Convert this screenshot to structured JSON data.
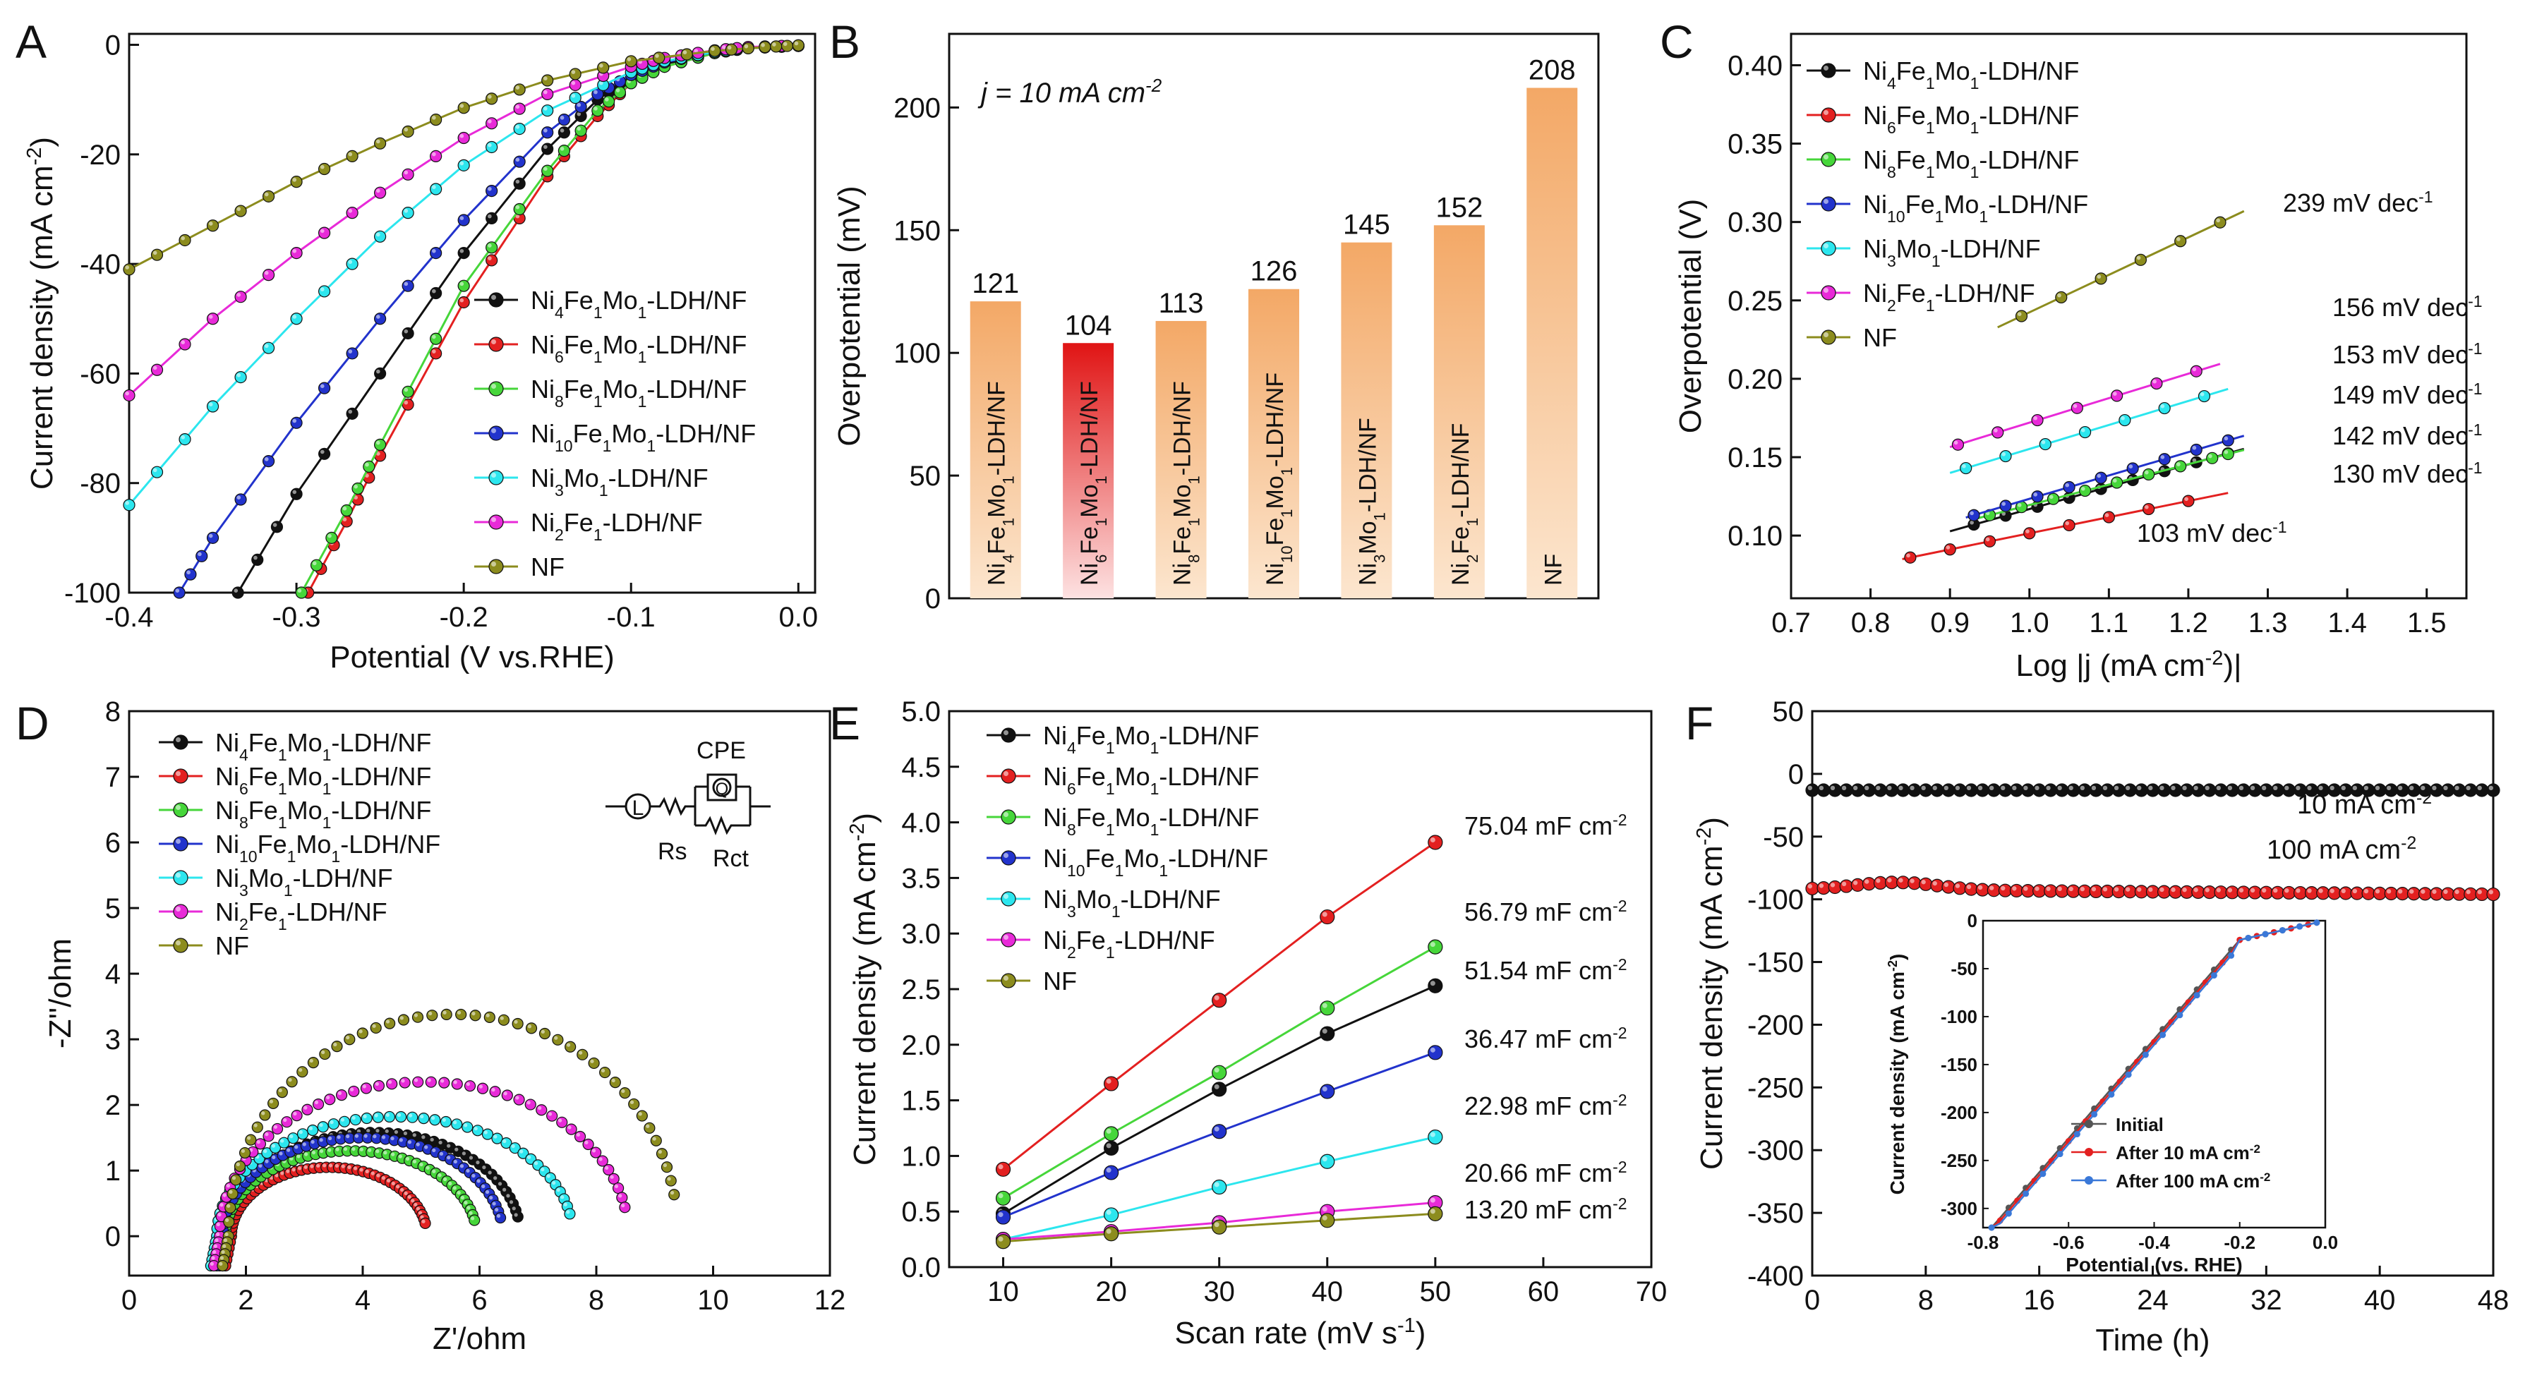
{
  "colors": {
    "black": "#111111",
    "red": "#e32020",
    "green": "#46d63a",
    "blue": "#2233cc",
    "cyan": "#2ce6ee",
    "magenta": "#e82ad8",
    "olive": "#8c8c1e",
    "orange": "#f3a866",
    "orangeLight": "#fce6cf",
    "redBar": "#e01414"
  },
  "chart_data": [
    {
      "panel": "A",
      "type": "line",
      "xlabel": "Potential (V vs.RHE)",
      "ylabel": "Current density (mA cm-2)",
      "xlim": [
        -0.4,
        0.01
      ],
      "ylim": [
        -100,
        2
      ],
      "xticks": [
        "-0.4",
        "-0.3",
        "-0.2",
        "-0.1",
        "0.0"
      ],
      "yticks": [
        "-100",
        "-80",
        "-60",
        "-40",
        "-20",
        "0"
      ],
      "legend": [
        "Ni4Fe1Mo1-LDH/NF",
        "Ni6Fe1Mo1-LDH/NF",
        "Ni8Fe1Mo1-LDH/NF",
        "Ni10Fe1Mo1-LDH/NF",
        "Ni3Mo1-LDH/NF",
        "Ni2Fe1-LDH/NF",
        "NF"
      ],
      "series": [
        {
          "name": "Ni4Fe1Mo1-LDH/NF",
          "color": "black",
          "x": [
            -0.335,
            -0.3,
            -0.25,
            -0.2,
            -0.15,
            -0.12,
            -0.1,
            -0.08,
            -0.05,
            -0.03,
            0.0
          ],
          "y": [
            -100,
            -82,
            -60,
            -38,
            -19,
            -10,
            -6,
            -3.5,
            -1.5,
            -0.6,
            -0.2
          ]
        },
        {
          "name": "Ni6Fe1Mo1-LDH/NF",
          "color": "red",
          "x": [
            -0.293,
            -0.27,
            -0.25,
            -0.2,
            -0.15,
            -0.12,
            -0.1,
            -0.08,
            -0.05,
            -0.03,
            0.0
          ],
          "y": [
            -100,
            -87,
            -75,
            -47,
            -24,
            -13,
            -7,
            -4,
            -1.5,
            -0.6,
            -0.2
          ]
        },
        {
          "name": "Ni8Fe1Mo1-LDH/NF",
          "color": "green",
          "x": [
            -0.297,
            -0.27,
            -0.25,
            -0.2,
            -0.15,
            -0.12,
            -0.1,
            -0.08,
            -0.05,
            -0.03,
            0.0
          ],
          "y": [
            -100,
            -85,
            -73,
            -44,
            -23,
            -12,
            -7,
            -4,
            -1.5,
            -0.6,
            -0.2
          ]
        },
        {
          "name": "Ni10Fe1Mo1-LDH/NF",
          "color": "blue",
          "x": [
            -0.37,
            -0.35,
            -0.3,
            -0.25,
            -0.2,
            -0.15,
            -0.12,
            -0.1,
            -0.08,
            -0.05,
            -0.03,
            0.0
          ],
          "y": [
            -100,
            -90,
            -69,
            -50,
            -32,
            -16,
            -9,
            -5.5,
            -3.2,
            -1.3,
            -0.5,
            -0.2
          ]
        },
        {
          "name": "Ni3Mo1-LDH/NF",
          "color": "cyan",
          "x": [
            -0.4,
            -0.35,
            -0.3,
            -0.25,
            -0.2,
            -0.15,
            -0.1,
            -0.08,
            -0.05,
            -0.03,
            0.0
          ],
          "y": [
            -84,
            -66,
            -50,
            -35,
            -22,
            -12,
            -5,
            -3,
            -1.3,
            -0.5,
            -0.2
          ]
        },
        {
          "name": "Ni2Fe1-LDH/NF",
          "color": "magenta",
          "x": [
            -0.4,
            -0.35,
            -0.3,
            -0.25,
            -0.2,
            -0.15,
            -0.1,
            -0.08,
            -0.05,
            -0.03,
            0.0
          ],
          "y": [
            -64,
            -50,
            -38,
            -27,
            -17,
            -9,
            -4,
            -2.4,
            -1,
            -0.4,
            -0.1
          ]
        },
        {
          "name": "NF",
          "color": "olive",
          "x": [
            -0.4,
            -0.35,
            -0.3,
            -0.25,
            -0.2,
            -0.15,
            -0.1,
            -0.05,
            -0.02,
            0.0
          ],
          "y": [
            -41,
            -33,
            -25,
            -18,
            -11.5,
            -6.5,
            -3,
            -1.1,
            -0.4,
            -0.1
          ]
        }
      ]
    },
    {
      "panel": "B",
      "type": "bar",
      "ylabel": "Overpotential (mV)",
      "annotation": "j = 10 mA cm-2",
      "ylim": [
        0,
        230
      ],
      "yticks": [
        "0",
        "50",
        "100",
        "150",
        "200"
      ],
      "categories": [
        "Ni4Fe1Mo1-LDH/NF",
        "Ni6Fe1Mo1-LDH/NF",
        "Ni8Fe1Mo1-LDH/NF",
        "Ni10Fe1Mo1-LDH/NF",
        "Ni3Mo1-LDH/NF",
        "Ni2Fe1-LDH/NF",
        "NF"
      ],
      "values": [
        121,
        104,
        113,
        126,
        145,
        152,
        208
      ],
      "value_labels": [
        "121",
        "104",
        "113",
        "126",
        "145",
        "152",
        "208"
      ],
      "highlight": "Ni6Fe1Mo1-LDH/NF"
    },
    {
      "panel": "C",
      "type": "scatter",
      "xlabel": "Log |j (mA cm-2)|",
      "ylabel": "Overpotential (V)",
      "xlim": [
        0.7,
        1.55
      ],
      "ylim": [
        0.06,
        0.42
      ],
      "xticks": [
        "0.7",
        "0.8",
        "0.9",
        "1.0",
        "1.1",
        "1.2",
        "1.3",
        "1.4",
        "1.5"
      ],
      "yticks": [
        "0.10",
        "0.15",
        "0.20",
        "0.25",
        "0.30",
        "0.35",
        "0.40"
      ],
      "legend": [
        "Ni4Fe1Mo1-LDH/NF",
        "Ni6Fe1Mo1-LDH/NF",
        "Ni8Fe1Mo1-LDH/NF",
        "Ni10Fe1Mo1-LDH/NF",
        "Ni3Mo1-LDH/NF",
        "Ni2Fe1-LDH/NF",
        "NF"
      ],
      "series": [
        {
          "name": "Ni4Fe1Mo1-LDH/NF",
          "color": "black",
          "x": [
            0.93,
            0.97,
            1.01,
            1.05,
            1.09,
            1.13,
            1.17,
            1.21,
            1.25
          ],
          "y0": 0.107,
          "slope": 0.142,
          "fit": [
            0.9,
            1.27
          ]
        },
        {
          "name": "Ni6Fe1Mo1-LDH/NF",
          "color": "red",
          "x": [
            0.85,
            0.9,
            0.95,
            1.0,
            1.05,
            1.1,
            1.15,
            1.2
          ],
          "y0": 0.086,
          "slope": 0.103,
          "fit": [
            0.84,
            1.25
          ]
        },
        {
          "name": "Ni8Fe1Mo1-LDH/NF",
          "color": "green",
          "x": [
            0.95,
            0.99,
            1.03,
            1.07,
            1.11,
            1.15,
            1.19,
            1.23,
            1.25
          ],
          "y0": 0.113,
          "slope": 0.13,
          "fit": [
            0.93,
            1.27
          ]
        },
        {
          "name": "Ni10Fe1Mo1-LDH/NF",
          "color": "blue",
          "x": [
            0.93,
            0.97,
            1.01,
            1.05,
            1.09,
            1.13,
            1.17,
            1.21,
            1.25
          ],
          "y0": 0.113,
          "slope": 0.149,
          "fit": [
            0.92,
            1.27
          ]
        },
        {
          "name": "Ni3Mo1-LDH/NF",
          "color": "cyan",
          "x": [
            0.92,
            0.97,
            1.02,
            1.07,
            1.12,
            1.17,
            1.22
          ],
          "y0": 0.143,
          "slope": 0.153,
          "fit": [
            0.9,
            1.25
          ]
        },
        {
          "name": "Ni2Fe1-LDH/NF",
          "color": "magenta",
          "x": [
            0.91,
            0.96,
            1.01,
            1.06,
            1.11,
            1.16,
            1.21
          ],
          "y0": 0.158,
          "slope": 0.156,
          "fit": [
            0.9,
            1.24
          ]
        },
        {
          "name": "NF",
          "color": "olive",
          "x": [
            0.99,
            1.04,
            1.09,
            1.14,
            1.19,
            1.24
          ],
          "y0": 0.24,
          "slope": 0.239,
          "fit": [
            0.96,
            1.27
          ]
        }
      ],
      "slope_labels": [
        {
          "text": "239 mV dec-1",
          "color": "olive"
        },
        {
          "text": "156 mV dec-1",
          "color": "magenta"
        },
        {
          "text": "153 mV dec-1",
          "color": "cyan"
        },
        {
          "text": "149 mV dec-1",
          "color": "blue"
        },
        {
          "text": "142 mV dec-1",
          "color": "black"
        },
        {
          "text": "130 mV dec-1",
          "color": "green"
        },
        {
          "text": "103 mV dec-1",
          "color": "red"
        }
      ]
    },
    {
      "panel": "D",
      "type": "scatter",
      "xlabel": "Z'/ohm",
      "ylabel": "-Z''/ohm",
      "xlim": [
        0,
        12
      ],
      "ylim": [
        -0.6,
        8
      ],
      "xticks": [
        "0",
        "2",
        "4",
        "6",
        "8",
        "10",
        "12"
      ],
      "yticks": [
        "0",
        "1",
        "2",
        "3",
        "4",
        "5",
        "6",
        "7",
        "8"
      ],
      "legend": [
        "Ni4Fe1Mo1-LDH/NF",
        "Ni6Fe1Mo1-LDH/NF",
        "Ni8Fe1Mo1-LDH/NF",
        "Ni10Fe1Mo1-LDH/NF",
        "Ni3Mo1-LDH/NF",
        "Ni2Fe1-LDH/NF",
        "NF"
      ],
      "circuit_labels": {
        "cpe": "CPE",
        "l": "L",
        "q": "Q",
        "rs": "Rs",
        "rct": "Rct"
      },
      "series": [
        {
          "name": "Ni4Fe1Mo1-LDH/NF",
          "color": "black",
          "rs": 1.7,
          "rct": 5.0,
          "height": 1.58
        },
        {
          "name": "Ni6Fe1Mo1-LDH/NF",
          "color": "red",
          "rs": 1.75,
          "rct": 3.35,
          "height": 1.05
        },
        {
          "name": "Ni8Fe1Mo1-LDH/NF",
          "color": "green",
          "rs": 1.65,
          "rct": 4.3,
          "height": 1.3
        },
        {
          "name": "Ni10Fe1Mo1-LDH/NF",
          "color": "blue",
          "rs": 1.6,
          "rct": 4.8,
          "height": 1.5
        },
        {
          "name": "Ni3Mo1-LDH/NF",
          "color": "cyan",
          "rs": 1.5,
          "rct": 6.1,
          "height": 1.82
        },
        {
          "name": "Ni2Fe1-LDH/NF",
          "color": "magenta",
          "rs": 1.55,
          "rct": 7.0,
          "height": 2.35
        },
        {
          "name": "NF",
          "color": "olive",
          "rs": 1.7,
          "rct": 7.7,
          "height": 3.38
        }
      ]
    },
    {
      "panel": "E",
      "type": "line",
      "xlabel": "Scan rate (mV s-1)",
      "ylabel": "Current density (mA cm-2)",
      "xlim": [
        5,
        70
      ],
      "ylim": [
        0,
        5
      ],
      "xticks": [
        "10",
        "20",
        "30",
        "40",
        "50",
        "60",
        "70"
      ],
      "yticks": [
        "0.0",
        "0.5",
        "1.0",
        "1.5",
        "2.0",
        "2.5",
        "3.0",
        "3.5",
        "4.0",
        "4.5",
        "5.0"
      ],
      "x": [
        10,
        20,
        30,
        40,
        50
      ],
      "legend": [
        "Ni4Fe1Mo1-LDH/NF",
        "Ni6Fe1Mo1-LDH/NF",
        "Ni8Fe1Mo1-LDH/NF",
        "Ni10Fe1Mo1-LDH/NF",
        "Ni3Mo1-LDH/NF",
        "Ni2Fe1-LDH/NF",
        "NF"
      ],
      "series": [
        {
          "name": "Ni4Fe1Mo1-LDH/NF",
          "color": "black",
          "values": [
            0.48,
            1.07,
            1.6,
            2.1,
            2.53
          ],
          "label": "51.54 mF cm-2"
        },
        {
          "name": "Ni6Fe1Mo1-LDH/NF",
          "color": "red",
          "values": [
            0.88,
            1.65,
            2.4,
            3.15,
            3.82
          ],
          "label": "75.04 mF cm-2"
        },
        {
          "name": "Ni8Fe1Mo1-LDH/NF",
          "color": "green",
          "values": [
            0.62,
            1.2,
            1.75,
            2.33,
            2.88
          ],
          "label": "56.79 mF cm-2"
        },
        {
          "name": "Ni10Fe1Mo1-LDH/NF",
          "color": "blue",
          "values": [
            0.45,
            0.85,
            1.22,
            1.58,
            1.93
          ],
          "label": "36.47 mF cm-2"
        },
        {
          "name": "Ni3Mo1-LDH/NF",
          "color": "cyan",
          "values": [
            0.25,
            0.47,
            0.72,
            0.95,
            1.17
          ],
          "label": "22.98 mF cm-2"
        },
        {
          "name": "Ni2Fe1-LDH/NF",
          "color": "magenta",
          "values": [
            0.25,
            0.32,
            0.4,
            0.5,
            0.58
          ],
          "label": "20.66 mF cm-2"
        },
        {
          "name": "NF",
          "color": "olive",
          "values": [
            0.23,
            0.3,
            0.36,
            0.42,
            0.48
          ],
          "label": "13.20 mF cm-2"
        }
      ]
    },
    {
      "panel": "F",
      "type": "scatter",
      "xlabel": "Time (h)",
      "ylabel": "Current density (mA cm-2)",
      "xlim": [
        0,
        48
      ],
      "ylim": [
        -400,
        50
      ],
      "xticks": [
        "0",
        "8",
        "16",
        "24",
        "32",
        "40",
        "48"
      ],
      "yticks": [
        "50",
        "0",
        "-50",
        "-100",
        "-150",
        "-200",
        "-250",
        "-300",
        "-350",
        "-400"
      ],
      "labels": [
        "10 mA cm-2",
        "100 mA cm-2"
      ],
      "series": [
        {
          "name": "10 mA cm-2",
          "color": "black",
          "level": -13
        },
        {
          "name": "100 mA cm-2",
          "color": "red",
          "level": -92
        }
      ],
      "inset": {
        "xlabel": "Potential (vs. RHE)",
        "ylabel": "Current density (mA cm-2)",
        "xlim": [
          -0.8,
          0.0
        ],
        "ylim": [
          -320,
          0
        ],
        "xticks": [
          "-0.8",
          "-0.6",
          "-0.4",
          "-0.2",
          "0.0"
        ],
        "yticks": [
          "0",
          "-50",
          "-100",
          "-150",
          "-200",
          "-250",
          "-300"
        ],
        "legend": [
          "Initial",
          "After 10 mA cm-2",
          "After 100 mA cm-2"
        ],
        "colors": [
          "#555555",
          "#e32020",
          "#3a78d8"
        ]
      }
    }
  ],
  "panel_letters": [
    "A",
    "B",
    "C",
    "D",
    "E",
    "F"
  ]
}
